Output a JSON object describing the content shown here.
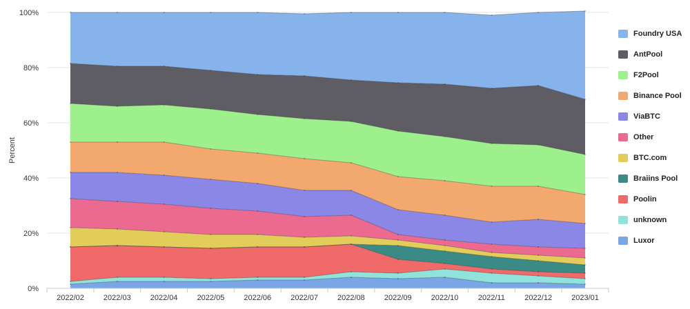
{
  "chart_data": {
    "type": "area",
    "stacked": true,
    "percent": true,
    "title": "",
    "xlabel": "",
    "ylabel": "Percent",
    "ylim": [
      0,
      100
    ],
    "yticks": [
      "0%",
      "20%",
      "40%",
      "60%",
      "80%",
      "100%"
    ],
    "categories": [
      "2022/02",
      "2022/03",
      "2022/04",
      "2022/05",
      "2022/06",
      "2022/07",
      "2022/08",
      "2022/09",
      "2022/10",
      "2022/11",
      "2022/12",
      "2023/01"
    ],
    "grid": true,
    "legend_position": "right",
    "series": [
      {
        "name": "Luxor",
        "color": "#7aa5e6",
        "values": [
          1.5,
          2.5,
          2.5,
          2.5,
          3,
          3,
          4,
          3.5,
          4,
          2,
          2,
          1.5
        ]
      },
      {
        "name": "unknown",
        "color": "#8fe3db",
        "values": [
          1,
          1.5,
          1.5,
          1,
          1,
          1,
          2,
          2,
          3,
          3.5,
          2.5,
          2
        ]
      },
      {
        "name": "Poolin",
        "color": "#f06a6a",
        "values": [
          12.5,
          11.5,
          11,
          11,
          11,
          11,
          10,
          5,
          2,
          1.5,
          1.5,
          2
        ]
      },
      {
        "name": "Braiins Pool",
        "color": "#3a8a86",
        "values": [
          0,
          0,
          0,
          0,
          0,
          0,
          0,
          5,
          4.5,
          4.5,
          4,
          3
        ]
      },
      {
        "name": "BTC.com",
        "color": "#e2cd5a",
        "values": [
          7,
          6,
          5.5,
          5,
          4.5,
          3.5,
          3,
          2,
          2,
          1.5,
          2,
          2.5
        ]
      },
      {
        "name": "Other",
        "color": "#ec6a90",
        "values": [
          10.5,
          10,
          10,
          9.5,
          8.5,
          7.5,
          7.5,
          2,
          2,
          3,
          3,
          3.5
        ]
      },
      {
        "name": "ViaBTC",
        "color": "#8b87e6",
        "values": [
          9.5,
          10.5,
          10.5,
          10.5,
          10,
          9.5,
          9,
          9,
          9,
          8,
          10,
          9
        ]
      },
      {
        "name": "Binance Pool",
        "color": "#f3a86d",
        "values": [
          11,
          11,
          12,
          11,
          11,
          11.5,
          10,
          12,
          12.5,
          13,
          12,
          10.5
        ]
      },
      {
        "name": "F2Pool",
        "color": "#9df08c",
        "values": [
          14,
          13,
          13.5,
          14.5,
          14,
          14.5,
          15,
          16.5,
          16,
          15.5,
          15,
          14.5
        ]
      },
      {
        "name": "AntPool",
        "color": "#5e5d63",
        "values": [
          14.5,
          14.5,
          14,
          14,
          14.5,
          15.5,
          15,
          17.5,
          19,
          20,
          21.5,
          20
        ]
      },
      {
        "name": "Foundry USA",
        "color": "#86b3eb",
        "values": [
          18.5,
          19.5,
          19.5,
          21,
          22.5,
          22.5,
          24.5,
          25.5,
          26,
          26.5,
          26.5,
          32
        ]
      }
    ],
    "legend_order": [
      "Foundry USA",
      "AntPool",
      "F2Pool",
      "Binance Pool",
      "ViaBTC",
      "Other",
      "BTC.com",
      "Braiins Pool",
      "Poolin",
      "unknown",
      "Luxor"
    ]
  }
}
